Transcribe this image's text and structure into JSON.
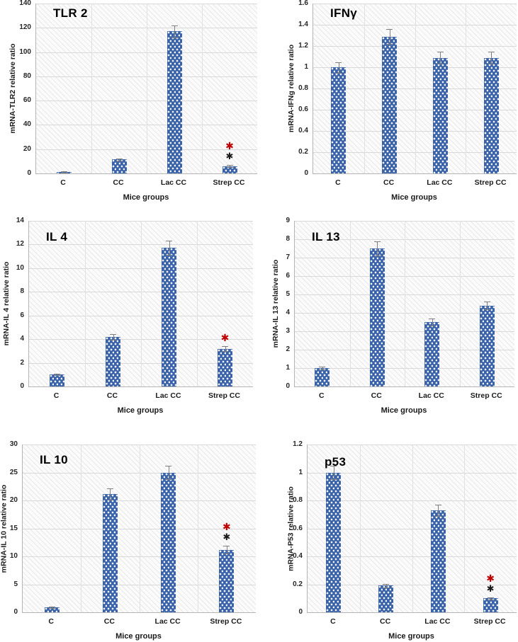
{
  "figure": {
    "description": "Panel of six bar charts of mRNA relative ratios in mice groups",
    "group_axis_label": "Mice groups",
    "group_labels": [
      "C",
      "CC",
      "Lac CC",
      "Strep CC"
    ]
  },
  "colors": {
    "bar_fill": "#3a62a8",
    "bar_dots": "#ffffff",
    "error_bar": "#7f7f7f",
    "red_asterisk": "#c00000",
    "black_asterisk": "#1a1a1a",
    "gridline": "#d9d9d9",
    "plot_hatch": "#ececec"
  },
  "chart_data": [
    {
      "type": "bar",
      "title": "TLR 2",
      "ylabel": "mRNA-TLR2 relative ratio",
      "xlabel": "Mice groups",
      "categories": [
        "C",
        "CC",
        "Lac CC",
        "Strep CC"
      ],
      "values": [
        1,
        11.5,
        117,
        6
      ],
      "errors": [
        0.5,
        0.8,
        5,
        0.8
      ],
      "ylim": [
        0,
        140
      ],
      "ytick_step": 20,
      "grid": true,
      "legend": false,
      "annotations": [
        {
          "category": "Strep CC",
          "marks": [
            "red-asterisk",
            "black-asterisk"
          ]
        }
      ]
    },
    {
      "type": "bar",
      "title": "IFNγ",
      "ylabel": "mRNA-IFNg relative ratio",
      "xlabel": "Mice groups",
      "categories": [
        "C",
        "CC",
        "Lac CC",
        "Strep CC"
      ],
      "values": [
        1.0,
        1.29,
        1.09,
        1.09
      ],
      "errors": [
        0.05,
        0.07,
        0.055,
        0.055
      ],
      "ylim": [
        0,
        1.6
      ],
      "ytick_step": 0.2,
      "grid": true,
      "legend": false,
      "annotations": []
    },
    {
      "type": "bar",
      "title": "IL 4",
      "ylabel": "mRNA-IL 4 relative ratio",
      "xlabel": "Mice groups",
      "categories": [
        "C",
        "CC",
        "Lac CC",
        "Strep CC"
      ],
      "values": [
        1.0,
        4.2,
        11.7,
        3.2
      ],
      "errors": [
        0.07,
        0.25,
        0.6,
        0.2
      ],
      "ylim": [
        0,
        14
      ],
      "ytick_step": 2,
      "grid": true,
      "legend": false,
      "annotations": [
        {
          "category": "Strep CC",
          "marks": [
            "red-asterisk"
          ]
        }
      ]
    },
    {
      "type": "bar",
      "title": "IL 13",
      "ylabel": "mRNA-IL 13 relative ratio",
      "xlabel": "Mice groups",
      "categories": [
        "C",
        "CC",
        "Lac CC",
        "Strep CC"
      ],
      "values": [
        1.0,
        7.5,
        3.5,
        4.4
      ],
      "errors": [
        0.06,
        0.38,
        0.18,
        0.22
      ],
      "ylim": [
        0,
        9
      ],
      "ytick_step": 1,
      "grid": true,
      "legend": false,
      "annotations": []
    },
    {
      "type": "bar",
      "title": "IL 10",
      "ylabel": "mRNA-IL 10 relative ratio",
      "xlabel": "Mice groups",
      "categories": [
        "C",
        "CC",
        "Lac CC",
        "Strep CC"
      ],
      "values": [
        0.9,
        21.1,
        25.0,
        11.2
      ],
      "errors": [
        0.15,
        1.0,
        1.2,
        0.65
      ],
      "ylim": [
        0,
        30
      ],
      "ytick_step": 5,
      "grid": true,
      "legend": false,
      "annotations": [
        {
          "category": "Strep CC",
          "marks": [
            "red-asterisk",
            "black-asterisk"
          ]
        }
      ]
    },
    {
      "type": "bar",
      "title": "p53",
      "ylabel": "mRNA-P53 relative ratio",
      "xlabel": "Mice groups",
      "categories": [
        "C",
        "CC",
        "Lac CC",
        "Strep CC"
      ],
      "values": [
        1.0,
        0.19,
        0.73,
        0.1
      ],
      "errors": [
        0.05,
        0.012,
        0.04,
        0.008
      ],
      "ylim": [
        0,
        1.2
      ],
      "ytick_step": 0.2,
      "grid": true,
      "legend": false,
      "annotations": [
        {
          "category": "Strep CC",
          "marks": [
            "red-asterisk",
            "black-asterisk"
          ]
        }
      ]
    }
  ]
}
